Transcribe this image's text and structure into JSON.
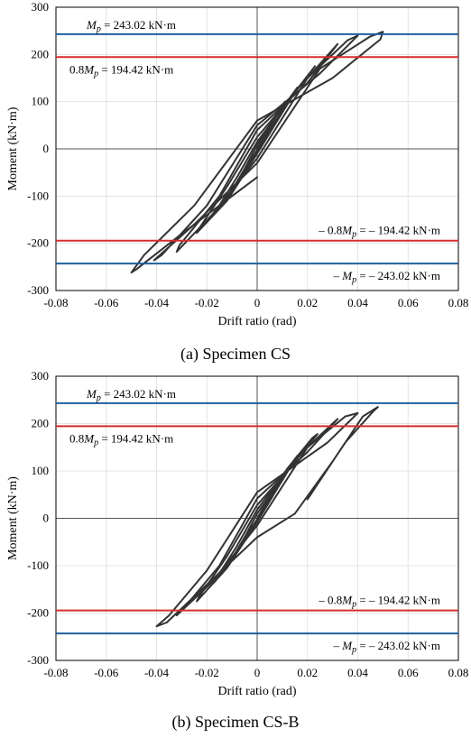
{
  "chart_data": [
    {
      "type": "line",
      "caption": "(a) Specimen CS",
      "xlabel": "Drift ratio (rad)",
      "ylabel": "Moment (kN·m)",
      "xlim": [
        -0.08,
        0.08
      ],
      "ylim": [
        -300,
        300
      ],
      "xticks": [
        -0.08,
        -0.06,
        -0.04,
        -0.02,
        0,
        0.02,
        0.04,
        0.06,
        0.08
      ],
      "yticks": [
        -300,
        -200,
        -100,
        0,
        100,
        200,
        300
      ],
      "xtick_labels": [
        "-0.08",
        "-0.06",
        "-0.04",
        "-0.02",
        "0",
        "0.02",
        "0.04",
        "0.06",
        "0.08"
      ],
      "ytick_labels": [
        "-300",
        "-200",
        "-100",
        "0",
        "100",
        "200",
        "300"
      ],
      "grid": true,
      "reference_lines": [
        {
          "value": 243.02,
          "color": "#1f5f9e",
          "label_parts": [
            "",
            "M",
            "p",
            " = 243.02 kN·m"
          ],
          "label_side": "top-left"
        },
        {
          "value": 194.42,
          "color": "#d92b2b",
          "label_parts": [
            "0.8",
            "M",
            "p",
            " = 194.42 kN·m"
          ],
          "label_side": "below-left"
        },
        {
          "value": -194.42,
          "color": "#d92b2b",
          "label_parts": [
            "– 0.8",
            "M",
            "p",
            " = – 194.42 kN·m"
          ],
          "label_side": "above-right"
        },
        {
          "value": -243.02,
          "color": "#1f5f9e",
          "label_parts": [
            "– ",
            "M",
            "p",
            " = – 243.02 kN·m"
          ],
          "label_side": "below-right"
        }
      ],
      "series": [
        {
          "x": [
            0,
            0.005,
            0.01,
            0.011,
            0.006,
            0.0,
            -0.005,
            -0.01,
            -0.011,
            -0.006,
            0.0
          ],
          "y": [
            0,
            45,
            92,
            100,
            58,
            8,
            -42,
            -88,
            -98,
            -55,
            -2
          ]
        },
        {
          "x": [
            0,
            0.01,
            0.015,
            0.016,
            0.008,
            0.0,
            -0.008,
            -0.016,
            -0.017,
            -0.01,
            0.0
          ],
          "y": [
            -2,
            80,
            122,
            130,
            72,
            15,
            -60,
            -128,
            -138,
            -90,
            -5
          ]
        },
        {
          "x": [
            0,
            0.012,
            0.022,
            0.023,
            0.012,
            0.0,
            -0.012,
            -0.023,
            -0.024,
            -0.012,
            0.0
          ],
          "y": [
            -5,
            100,
            168,
            175,
            100,
            25,
            -80,
            -168,
            -178,
            -110,
            -10
          ]
        },
        {
          "x": [
            0,
            0.015,
            0.03,
            0.032,
            0.02,
            0.0,
            -0.015,
            -0.031,
            -0.032,
            -0.018,
            0.0
          ],
          "y": [
            -10,
            120,
            210,
            222,
            140,
            40,
            -100,
            -205,
            -218,
            -140,
            -20
          ]
        },
        {
          "x": [
            0,
            0.02,
            0.036,
            0.04,
            0.025,
            0.0,
            -0.02,
            -0.038,
            -0.041,
            -0.025,
            0.0
          ],
          "y": [
            -20,
            150,
            230,
            240,
            160,
            50,
            -120,
            -225,
            -236,
            -160,
            -30
          ]
        },
        {
          "x": [
            0,
            0.025,
            0.045,
            0.05,
            0.049,
            0.03,
            0.0,
            -0.025,
            -0.045,
            -0.05,
            -0.048,
            -0.03,
            0.0
          ],
          "y": [
            -30,
            170,
            238,
            248,
            232,
            150,
            60,
            -120,
            -225,
            -262,
            -255,
            -180,
            -60
          ]
        }
      ]
    },
    {
      "type": "line",
      "caption": "(b) Specimen CS-B",
      "xlabel": "Drift ratio (rad)",
      "ylabel": "Moment (kN·m)",
      "xlim": [
        -0.08,
        0.08
      ],
      "ylim": [
        -300,
        300
      ],
      "xticks": [
        -0.08,
        -0.06,
        -0.04,
        -0.02,
        0,
        0.02,
        0.04,
        0.06,
        0.08
      ],
      "yticks": [
        -300,
        -200,
        -100,
        0,
        100,
        200,
        300
      ],
      "xtick_labels": [
        "-0.08",
        "-0.06",
        "-0.04",
        "-0.02",
        "0",
        "0.02",
        "0.04",
        "0.06",
        "0.08"
      ],
      "ytick_labels": [
        "-300",
        "-200",
        "-100",
        "0",
        "100",
        "200",
        "300"
      ],
      "grid": true,
      "reference_lines": [
        {
          "value": 243.02,
          "color": "#1f5f9e",
          "label_parts": [
            "",
            "M",
            "p",
            " = 243.02 kN·m"
          ],
          "label_side": "top-left"
        },
        {
          "value": 194.42,
          "color": "#d92b2b",
          "label_parts": [
            "0.8",
            "M",
            "p",
            " = 194.42 kN·m"
          ],
          "label_side": "below-left"
        },
        {
          "value": -194.42,
          "color": "#d92b2b",
          "label_parts": [
            "– 0.8",
            "M",
            "p",
            " = – 194.42 kN·m"
          ],
          "label_side": "above-right"
        },
        {
          "value": -243.02,
          "color": "#1f5f9e",
          "label_parts": [
            "– ",
            "M",
            "p",
            " = – 243.02 kN·m"
          ],
          "label_side": "below-right"
        }
      ],
      "series": [
        {
          "x": [
            0,
            0.005,
            0.01,
            0.011,
            0.006,
            0.0,
            -0.005,
            -0.01,
            -0.011,
            -0.006,
            0.0
          ],
          "y": [
            0,
            45,
            90,
            98,
            55,
            10,
            -40,
            -85,
            -95,
            -50,
            -2
          ]
        },
        {
          "x": [
            0,
            0.01,
            0.015,
            0.016,
            0.008,
            0.0,
            -0.008,
            -0.016,
            -0.017,
            -0.01,
            0.0
          ],
          "y": [
            -2,
            80,
            125,
            132,
            75,
            18,
            -58,
            -125,
            -135,
            -85,
            -5
          ]
        },
        {
          "x": [
            0,
            0.012,
            0.022,
            0.024,
            0.012,
            0.0,
            -0.012,
            -0.023,
            -0.024,
            -0.012,
            0.0
          ],
          "y": [
            -5,
            105,
            170,
            178,
            100,
            28,
            -80,
            -165,
            -175,
            -105,
            -8
          ]
        },
        {
          "x": [
            0,
            0.015,
            0.03,
            0.032,
            0.02,
            0.0,
            -0.015,
            -0.03,
            -0.032,
            -0.018,
            0.0
          ],
          "y": [
            -8,
            125,
            200,
            210,
            140,
            42,
            -100,
            -195,
            -205,
            -135,
            -15
          ]
        },
        {
          "x": [
            0,
            0.02,
            0.035,
            0.04,
            0.028,
            0.0,
            -0.02,
            -0.035,
            -0.04,
            -0.036,
            -0.02,
            0.0,
            0.015
          ],
          "y": [
            -15,
            150,
            215,
            222,
            160,
            55,
            -110,
            -205,
            -228,
            -220,
            -140,
            -40,
            10
          ]
        },
        {
          "x": [
            0.015,
            0.03,
            0.042,
            0.048,
            0.046,
            0.035,
            0.02
          ],
          "y": [
            10,
            120,
            215,
            235,
            225,
            160,
            40
          ]
        }
      ]
    }
  ]
}
